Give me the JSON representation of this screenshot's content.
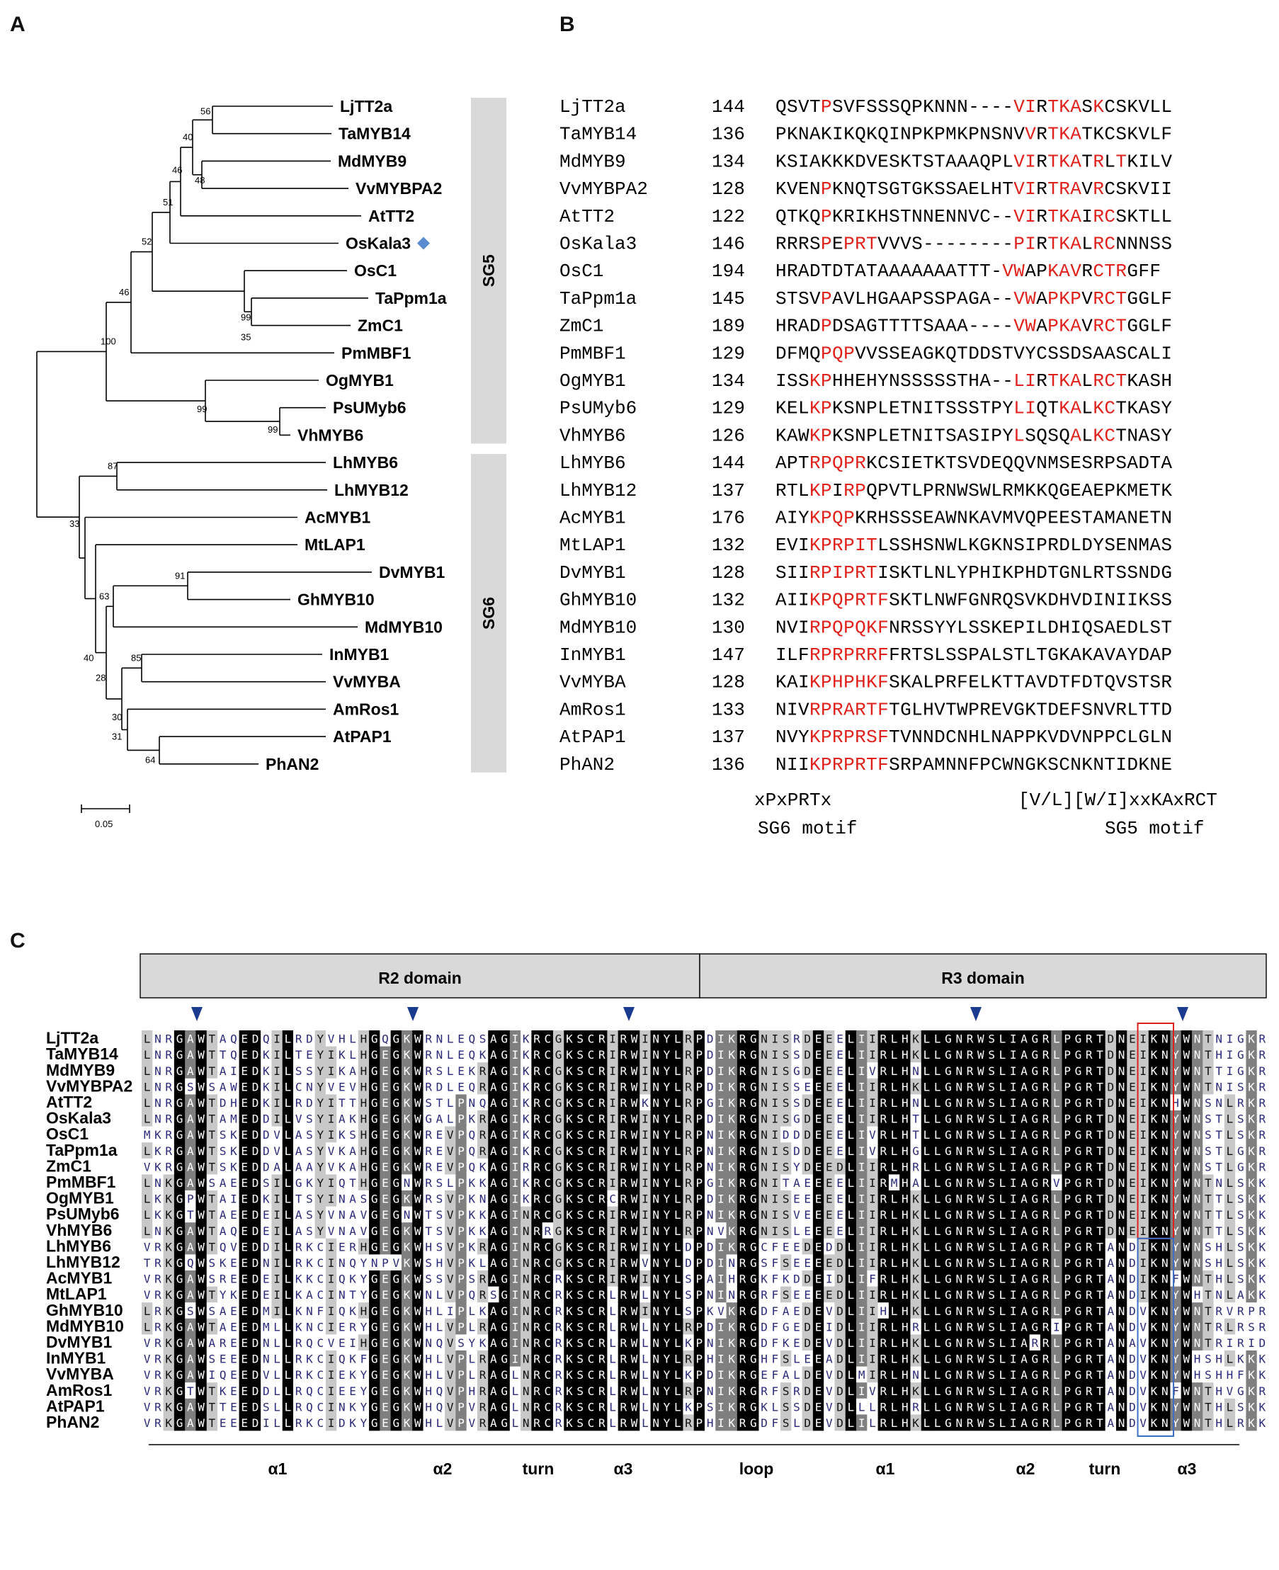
{
  "panels": {
    "a": "A",
    "b": "B",
    "c": "C"
  },
  "tree": {
    "leaves": [
      "LjTT2a",
      "TaMYB14",
      "MdMYB9",
      "VvMYBPA2",
      "AtTT2",
      "OsKala3",
      "OsC1",
      "TaPpm1a",
      "ZmC1",
      "PmMBF1",
      "OgMYB1",
      "PsUMyb6",
      "VhMYB6",
      "LhMYB6",
      "LhMYB12",
      "AcMYB1",
      "MtLAP1",
      "DvMYB1",
      "GhMYB10",
      "MdMYB10",
      "InMYB1",
      "VvMYBA",
      "AmRos1",
      "AtPAP1",
      "PhAN2"
    ],
    "bootstrap": [
      "56",
      "40",
      "46",
      "48",
      "51",
      "52",
      "99",
      "35",
      "46",
      "100",
      "99",
      "99",
      "87",
      "33",
      "91",
      "63",
      "40",
      "28",
      "85",
      "31",
      "30",
      "64"
    ],
    "marker_color": "#5b8bd0",
    "groups": [
      "SG5",
      "SG6"
    ],
    "scale_label": "0.05"
  },
  "alignment": {
    "rows": [
      {
        "name": "LjTT2a",
        "pos": "144",
        "seq": "QSVTPSVFSSSQPKNNN----VIRTKASKCSKVLL"
      },
      {
        "name": "TaMYB14",
        "pos": "136",
        "seq": "PKNAKIKQKQINPKPMKPNSNVVRTKATKCSKVLF"
      },
      {
        "name": "MdMYB9",
        "pos": "134",
        "seq": "KSIAKKKDVESKTSTAAAQPLVIRTKATRLTKILV"
      },
      {
        "name": "VvMYBPA2",
        "pos": "128",
        "seq": "KVENPKNQTSGTGKSSAELHTVIRTRAVRCSKVII"
      },
      {
        "name": "AtTT2",
        "pos": "122",
        "seq": "QTKQPKRIKHSTNNENNVC--VIRTKAIRCSKTLL"
      },
      {
        "name": "OsKala3",
        "pos": "146",
        "seq": "RRRSPEPRTVVVS--------PIRTKALRCNNNSS"
      },
      {
        "name": "OsC1",
        "pos": "194",
        "seq": "HRADTDTATAAAAAAATTT-VWAPKAVRCTRGFF"
      },
      {
        "name": "TaPpm1a",
        "pos": "145",
        "seq": "STSVPAVLHGAAPSSPAGA--VWAPKPVRCTGGLF"
      },
      {
        "name": "ZmC1",
        "pos": "189",
        "seq": "HRADPDSAGTTTTSAAA----VWAPKAVRCTGGLF"
      },
      {
        "name": "PmMBF1",
        "pos": "129",
        "seq": "DFMQPQPVVSSEAGKQTDDSTVYCSSDSAASCALI"
      },
      {
        "name": "OgMYB1",
        "pos": "134",
        "seq": "ISSKPHHEHYNSSSSSTHA--LIRTKALRCTKASH"
      },
      {
        "name": "PsUMyb6",
        "pos": "129",
        "seq": "KELKPKSNPLETNITSSSTPYLIQTKALKCTKASY"
      },
      {
        "name": "VhMYB6",
        "pos": "126",
        "seq": "KAWKPKSNPLETNITSASIPYLSQSQALKCTNASY"
      },
      {
        "name": "LhMYB6",
        "pos": "144",
        "seq": "APTRPQPRKCSIETKTSVDEQQVNMSESRPSADTA"
      },
      {
        "name": "LhMYB12",
        "pos": "137",
        "seq": "RTLKPIRPQPVTLPRNWSWLRMKKQGEAEPKMETK"
      },
      {
        "name": "AcMYB1",
        "pos": "176",
        "seq": "AIYKPQPKRHSSSEAWNKAVMVQPEESTAMANETN"
      },
      {
        "name": "MtLAP1",
        "pos": "132",
        "seq": "EVIKPRPITLSSHSNWLKGKNSIPRDLDYSENMAS"
      },
      {
        "name": "DvMYB1",
        "pos": "128",
        "seq": "SIIRPIPRTISKTLNLYPHIKPHDTGNLRTSSNDG"
      },
      {
        "name": "GhMYB10",
        "pos": "132",
        "seq": "AIIKPQPRTFSKTLNWFGNRQSVKDHVDINIIKSS"
      },
      {
        "name": "MdMYB10",
        "pos": "130",
        "seq": "NVIRPQPQKFNRSSYYLSSKEPILDHIQSAEDLST"
      },
      {
        "name": "InMYB1",
        "pos": "147",
        "seq": "ILFRPRPRRFFRTSLSSPALSTLTGKAKAVAYDAP"
      },
      {
        "name": "VvMYBA",
        "pos": "128",
        "seq": "KAIKPHPHKFSKALPRFELKTTAVDTFDTQVSTSR"
      },
      {
        "name": "AmRos1",
        "pos": "133",
        "seq": "NIVRPRARTFTGLHVTWPREVGKTDEFSNVRLTTD"
      },
      {
        "name": "AtPAP1",
        "pos": "137",
        "seq": "NVYKPRPRSFTVNNDCNHLNAPPKVDVNPPCLGLN"
      },
      {
        "name": "PhAN2",
        "pos": "136",
        "seq": "NIIKPRPRTFSRPAMNNFPCWNGKSCNKNTIDKNE"
      }
    ],
    "consensus_left": "xPxPRTx",
    "consensus_right": "[V/L][W/I]xxKAxRCT",
    "motif_left": "SG6 motif",
    "motif_right": "SG5 motif"
  },
  "domain_panel": {
    "r2": "R2 domain",
    "r3": "R3 domain",
    "names": [
      "LjTT2a",
      "TaMYB14",
      "MdMYB9",
      "VvMYBPA2",
      "AtTT2",
      "OsKala3",
      "OsC1",
      "TaPpm1a",
      "ZmC1",
      "PmMBF1",
      "OgMYB1",
      "PsUMyb6",
      "VhMYB6",
      "LhMYB6",
      "LhMYB12",
      "AcMYB1",
      "MtLAP1",
      "GhMYB10",
      "MdMYB10",
      "DvMYB1",
      "InMYB1",
      "VvMYBA",
      "AmRos1",
      "AtPAP1",
      "PhAN2"
    ],
    "sequences": [
      "LNRGAWTAQEDQILRDYVHLHGQGKWRNLEQSAGIKRCGKSCRIRWINYLRPDIKRGNISRDEEELIIRLHKLLGNRWSLIAGRLPGRTDNEIKNYWNTNIGKR",
      "LNRGAWTTQEDKILTEYIKLHGEGKWRNLEQKAGIKRCGKSCRIRWINYLRPDIKRGNISSDEEELIIRLHKLLGNRWSLIAGRLPGRTDNEIKNYWNTHIGKR",
      "LNRGAWTAIEDKILSSYIKAHGEGKWRSLEKRAGIKRCGKSCRIRWINYLRPDIKRGNISGDEEELIVRLHNLLGNRWSLIAGRLPGRTDNEIKNYWNTTIGKR",
      "LNRGSWSAWEDKILCNYVEVHGEGKWRDLEQRAGIKRCGKSCRIRWINYLRPDIKRGNISSEEEELIIRLHKLLGNRWSLIAGRLPGRTDNEIKNYWNTNISKR",
      "LNRGAWTDHEDKILRDYITTHGEGKWSTLPNQAGIKRCGKSCRIRWKNYLRPGIKRGNISSDEEELIIRLHNLLGNRWSLIAGRLPGRTDNEIKNHWNSNLRKR",
      "LNRGAWTAMEDDILVSYIAKHGEGKWGALPKRAGIKRCGKSCRIRWINYLRPDIKRGNISGDEEELIIRLHTLLGNRWSLIAGRLPGRTDNEIKNYWNSTLSKR",
      "MKRGAWTSKEDDVLASYIKSHGEGKWREVPQRAGIKRCGKSCRIRWINYLRPNIKRGNIDDDEEELIVRLHTLLGNRWSLIAGRLPGRTDNEIKNYWNSTLSKR",
      "LKRGAWTSKEDDVLASYVKAHGEGKWREVPQRAGIKRCGKSCRIRWINYLRPNIKRGNISDDEEELIVRLHGLLGNRWSLIAGRLPGRTDNEIKNYWNSTLGKR",
      "VKRGAWTSKEDDALAAYVKAHGEGKWREVPQKAGIRRCGKSCRIRWINYLRPNIKRGNISYDEEDLIIRLHRLLGNRWSLIAGRLPGRTDNEIKNYWNSTLGKR",
      "LNKGAWSAEEDSILGKYIQTHGEGNWRSLPKKAGIKRCGKSCRIRWINYLRPGIKRGNITAEEEELIIRMHALLGNRWSLIAGRVPGRTDNEIKNYWNTNLSKK",
      "LKKGPWTAIEDKILTSYINASGEGKWRSVPKNAGIKRCGKSCRCRWINYLRPDIKRGNISEEEEELIIRLHKLLGNRWSLIAGRLPGRTDNEIKNYWNTTLSKK",
      "LKKGTWTAEEDEILASYVNAVGEGNWTSVPKKAGINRCGKSCRIRWINYLRPNIKRGNISVEEEELIIRLHKLLGNRWSLIAGRLPGRTDNEIKNYWNTTLSKK",
      "LNKGAWTAQEDEILASYVNAVGEGKWTSVPKKAGINRRGKSCRIRWINYLRPNVKRGNISLEEEELIIRLHKLLGNRWSLIAGRLPGRTDNEIKNYWNTTLSKK",
      "VRKGAWTQVEDDILRKCIERHGEGKWHSVPKRAGINRCGKSCRIRWINYLDPDIKRGCFEEDEDDLIIRLHKLLGNRWSLIAGRLPGRTANDIKNYWNSHLSKK",
      "TRKGQWSKEEDNILRKCINQYNPVKWSHVPKLAGINRCGKSCRIRWVNYLDPDINRGSFSEEEEDLIIRLHKLLGNRWSLIAGRLPGRTANDIKNYWNSHLSKK",
      "VRKGAWSREEDEILKKCIQKYGEGKWSSVPSRAGINRCRKSCRIRWINYLSPAIHRGKFKDDEIDLIFRLHKLLGNRWSLIAGRLPGRTANDIKNFWNTHLSKK",
      "VRKGAWTYKEDEILKACINTYGEGKWNLVPQRSGINRCRKSCRLRWLNYLSPNINRGRFSEEEEDLIIRLHKLLGNRWSLIAGRLPGRTANDIKNYWHTNLAKK",
      "LRKGSWSAEEDMILKNFIQKHGEGKWHLIPLKAGINRCRKSCRLRWINYLSPKVKRGDFAEDEVDLIIHLHKLLGNRWSLIAGRLPGRTANDVKNYWNTRVRPR",
      "LRKGAWTAEEDMLLKNCIERYGEGKWHLVPLRAGINRCRKSCRLRWLNYLRPDIKRGDFGEDEIDLIIRLHRLLGNRWSLIAGRIPGRTANDVKNYWNTRLRSR",
      "VRKGAWAREEDNLLRQCVEIHGEGKWNQVSYKAGINRCRKSCRLRWLNYLKPNIKRGDFKEDEVDLIIRLHKLLGNRWSLIARRLPGRTANAVKNYWNTRIRID",
      "VRKGAWSEEEDNLLRKCIQKFGEGKWHLVPLRAGINRCRKSCRLRWLNYLRPHIKRGHFSLEEADLIIRLHKLLGNRWSLIAGRLPGRTANDVKNYWHSHLKKK",
      "VRKGAWIQEEDVLLRKCIEKYGEGKWHLVPLRAGLNRCRKSCRLRWLNYLKPDIKRGEFALDEVDLMIRLHNLLGNRWSLIAGRLPGRTANDVKNYWHSHHFKK",
      "VRKGTWTKEEDDLLRQCIEEYGEGKWHQVPHRAGLNRCRKSCRLRWLNYLRPNIKRGRFSRDEVDLIVRLHKLLGNRWSLIAGRLPGRTANDVKNFWNTHVGKR",
      "VRKGAWTTEEDSLLRQCINKYGEGKWHQVPVRAGLNRCRKSCRLRWLNYLKPSIKRGKLSSDEVDLLLRLHRLLGNRWSLIAGRLPGRTANDVKNYWNTHLSKK",
      "VRKGAWTEEEDILLRKCIDKYGEGKWHLVPVRAGLNRCRKSCRLRWLNYLRPHIKRGDFSLDEVDLILRLHKLLGNRWSLIAGRLPGRTANDVKNYWNTHLRKK"
    ],
    "structure_labels": [
      "α1",
      "α2",
      "turn",
      "α3",
      "loop",
      "α1",
      "α2",
      "turn",
      "α3"
    ]
  }
}
